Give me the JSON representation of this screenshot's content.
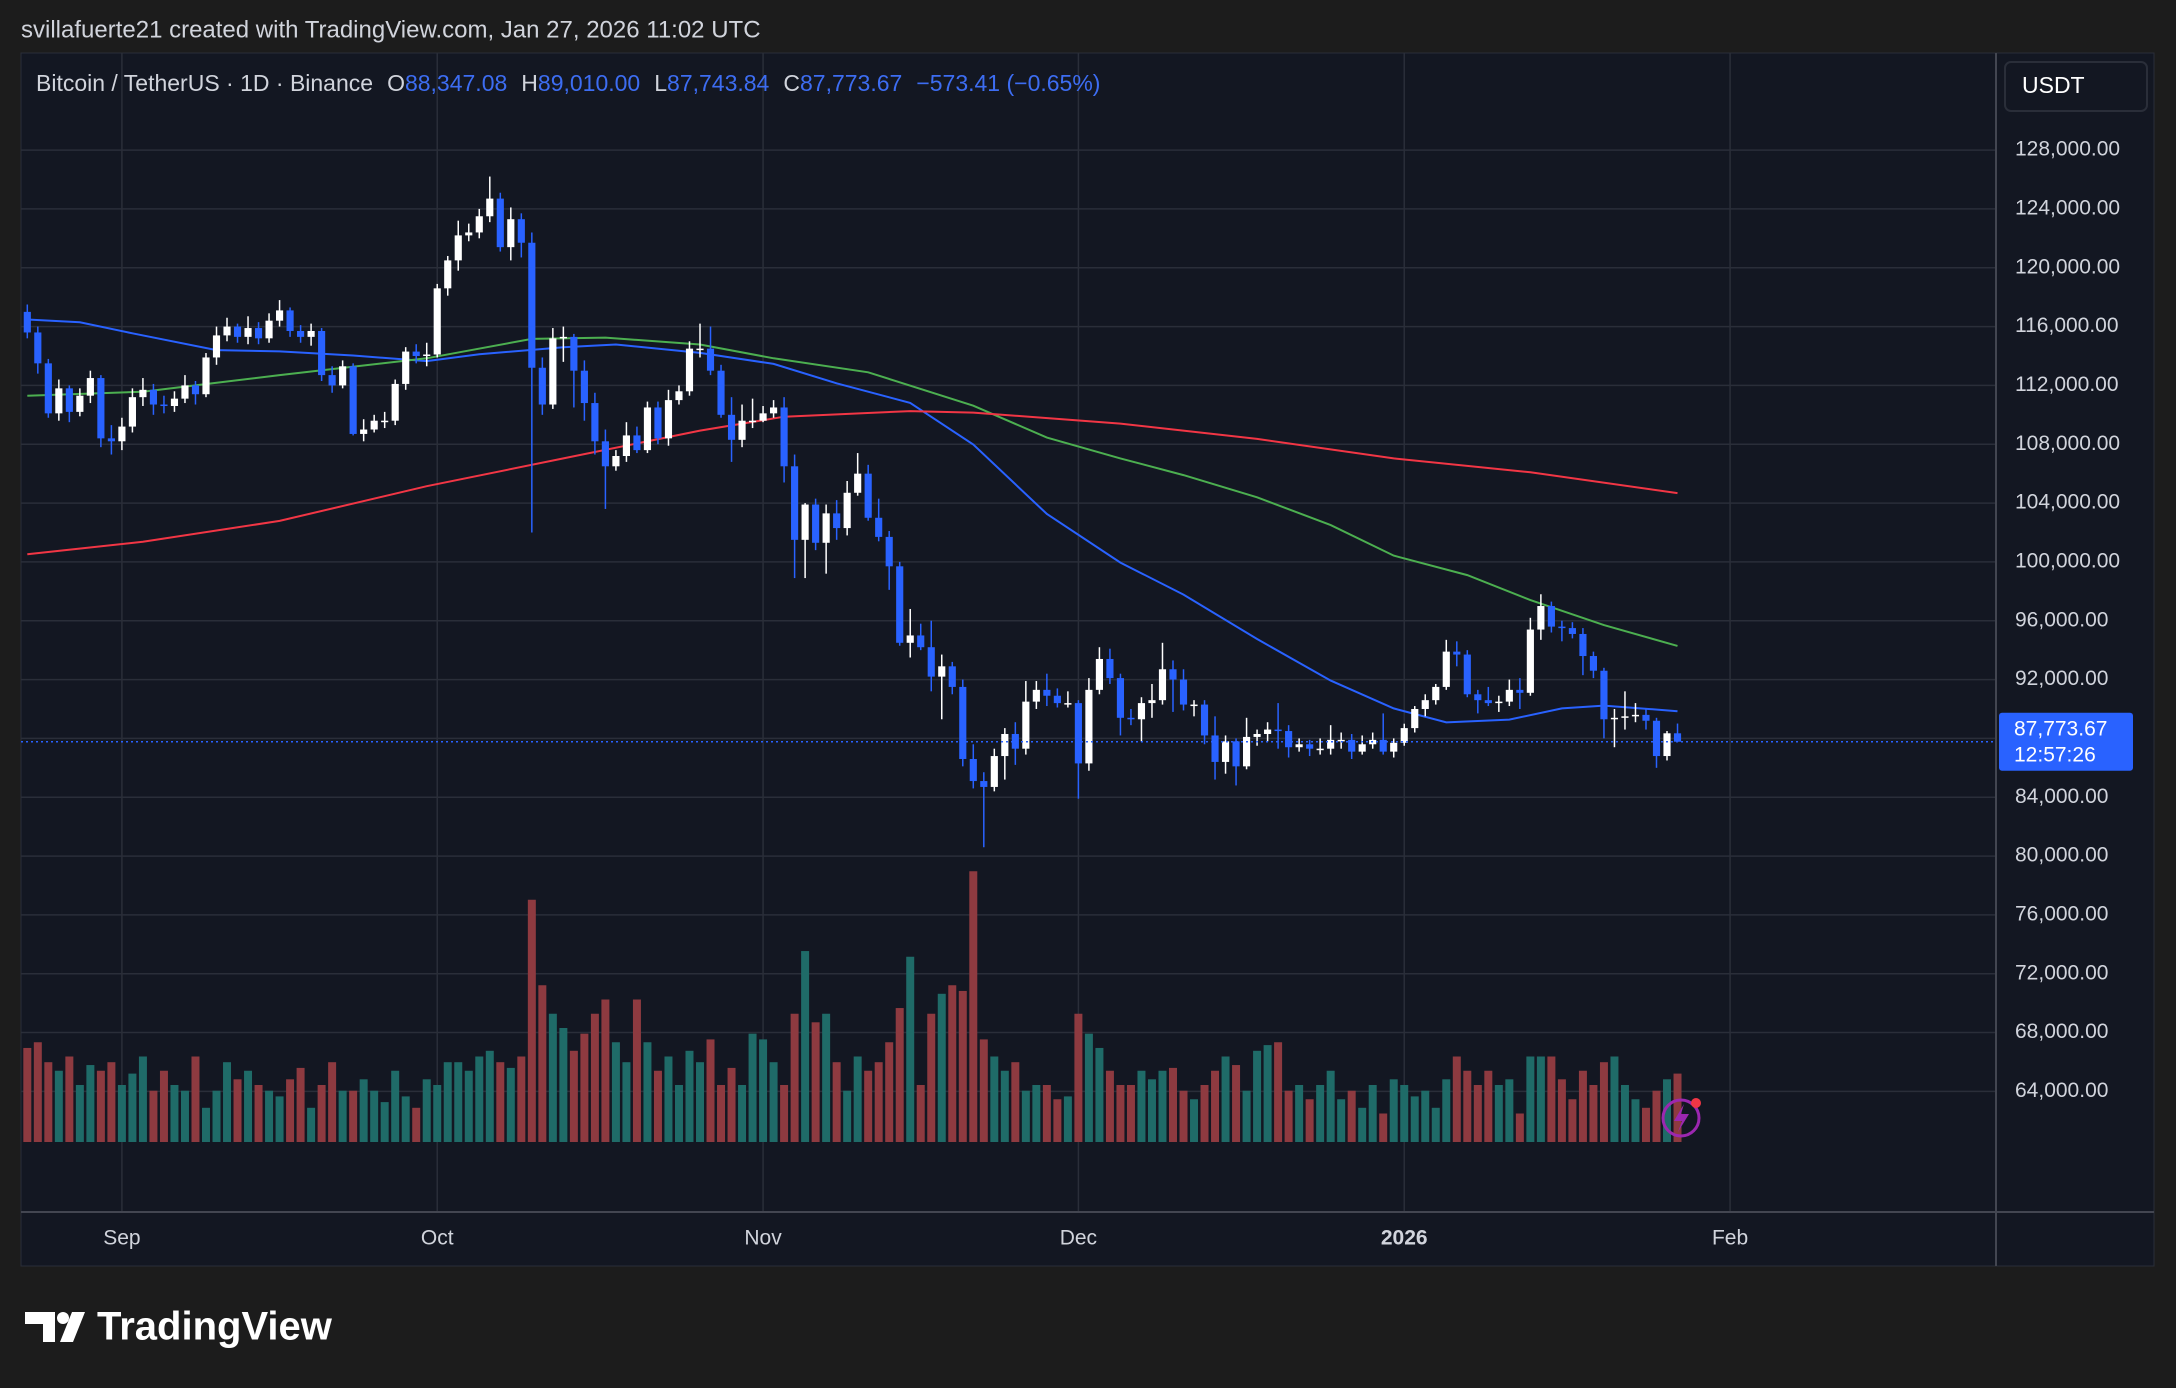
{
  "attribution": "svillafuerte21 created with TradingView.com, Jan 27, 2026 11:02 UTC",
  "brand": "TradingView",
  "chart_data": {
    "type": "candlestick",
    "header": {
      "symbol": "Bitcoin / TetherUS · 1D · Binance",
      "o_key": "O",
      "o": "88,347.08",
      "h_key": "H",
      "h": "89,010.00",
      "l_key": "L",
      "l": "87,743.84",
      "c_key": "C",
      "c": "87,773.67",
      "change": "−573.41 (−0.65%)"
    },
    "currency": "USDT",
    "last_price_label": "87,773.67",
    "countdown": "12:57:26",
    "up_color": "#ffffff",
    "down_color": "#2962ff",
    "volume_up_color": "#1f6b68",
    "volume_down_color": "#8e3a40",
    "grid": true,
    "xlim": [
      -0.6,
      187.3
    ],
    "xticks": [
      {
        "value": 9,
        "label": "Sep"
      },
      {
        "value": 39,
        "label": "Oct"
      },
      {
        "value": 70,
        "label": "Nov"
      },
      {
        "value": 100,
        "label": "Dec"
      },
      {
        "value": 131,
        "label": "2026"
      },
      {
        "value": 162,
        "label": "Feb"
      }
    ],
    "ylim": [
      55800,
      134600
    ],
    "yticks": [
      {
        "value": 64000,
        "label": "64,000.00"
      },
      {
        "value": 68000,
        "label": "68,000.00"
      },
      {
        "value": 72000,
        "label": "72,000.00"
      },
      {
        "value": 76000,
        "label": "76,000.00"
      },
      {
        "value": 80000,
        "label": "80,000.00"
      },
      {
        "value": 84000,
        "label": "84,000.00"
      },
      {
        "value": 88000,
        "label": "88,000.00"
      },
      {
        "value": 92000,
        "label": "92,000.00"
      },
      {
        "value": 96000,
        "label": "96,000.00"
      },
      {
        "value": 100000,
        "label": "100,000.00"
      },
      {
        "value": 104000,
        "label": "104,000.00"
      },
      {
        "value": 108000,
        "label": "108,000.00"
      },
      {
        "value": 112000,
        "label": "112,000.00"
      },
      {
        "value": 116000,
        "label": "116,000.00"
      },
      {
        "value": 120000,
        "label": "120,000.00"
      },
      {
        "value": 124000,
        "label": "124,000.00"
      },
      {
        "value": 128000,
        "label": "128,000.00"
      }
    ],
    "vlim": [
      0,
      100
    ],
    "candles": [
      [
        117000,
        117500,
        115200,
        115600
      ],
      [
        115600,
        116000,
        112800,
        113500
      ],
      [
        113500,
        113800,
        109800,
        110100
      ],
      [
        110100,
        112400,
        109600,
        111800
      ],
      [
        111800,
        112000,
        109500,
        110200
      ],
      [
        110200,
        111800,
        109900,
        111300
      ],
      [
        111300,
        113000,
        110800,
        112500
      ],
      [
        112500,
        112700,
        107800,
        108400
      ],
      [
        108400,
        109300,
        107300,
        108200
      ],
      [
        108200,
        109800,
        107600,
        109200
      ],
      [
        109200,
        111800,
        108800,
        111200
      ],
      [
        111200,
        112500,
        110600,
        111700
      ],
      [
        111700,
        112100,
        110000,
        110700
      ],
      [
        110700,
        111300,
        110100,
        110600
      ],
      [
        110600,
        111600,
        110200,
        111100
      ],
      [
        111100,
        112700,
        110800,
        112000
      ],
      [
        112000,
        112300,
        110700,
        111400
      ],
      [
        111400,
        114200,
        111200,
        113900
      ],
      [
        113900,
        116000,
        113400,
        115400
      ],
      [
        115400,
        116600,
        115000,
        116000
      ],
      [
        116000,
        116200,
        114900,
        115300
      ],
      [
        115300,
        116700,
        114800,
        115900
      ],
      [
        115900,
        116300,
        114800,
        115200
      ],
      [
        115200,
        116900,
        114900,
        116400
      ],
      [
        116400,
        117800,
        116000,
        117100
      ],
      [
        117100,
        117300,
        115300,
        115700
      ],
      [
        115700,
        116100,
        114900,
        115300
      ],
      [
        115300,
        116200,
        114700,
        115700
      ],
      [
        115700,
        115900,
        112300,
        112700
      ],
      [
        112700,
        113300,
        111500,
        112000
      ],
      [
        112000,
        113700,
        111800,
        113300
      ],
      [
        113300,
        113500,
        108600,
        108700
      ],
      [
        108700,
        109700,
        108200,
        109000
      ],
      [
        109000,
        110000,
        108800,
        109600
      ],
      [
        109600,
        110200,
        109100,
        109600
      ],
      [
        109600,
        112400,
        109300,
        112100
      ],
      [
        112100,
        114600,
        111700,
        114300
      ],
      [
        114300,
        114800,
        113500,
        114000
      ],
      [
        114000,
        114900,
        113300,
        114100
      ],
      [
        114100,
        118900,
        113900,
        118600
      ],
      [
        118600,
        120800,
        118100,
        120500
      ],
      [
        120500,
        123200,
        119800,
        122200
      ],
      [
        122200,
        123000,
        121800,
        122400
      ],
      [
        122400,
        124000,
        122000,
        123500
      ],
      [
        123500,
        126200,
        123100,
        124700
      ],
      [
        124700,
        125100,
        121100,
        121400
      ],
      [
        121400,
        124100,
        120500,
        123300
      ],
      [
        123300,
        123700,
        120700,
        121700
      ],
      [
        121700,
        122400,
        102000,
        113200
      ],
      [
        113200,
        113900,
        110000,
        110700
      ],
      [
        110700,
        115900,
        110400,
        115200
      ],
      [
        115200,
        116000,
        113600,
        115300
      ],
      [
        115300,
        115500,
        110500,
        113000
      ],
      [
        113000,
        113700,
        109600,
        110800
      ],
      [
        110800,
        111500,
        107300,
        108200
      ],
      [
        108200,
        109000,
        103600,
        106500
      ],
      [
        106500,
        107600,
        106200,
        107200
      ],
      [
        107200,
        109500,
        106800,
        108600
      ],
      [
        108600,
        109200,
        107400,
        107600
      ],
      [
        107600,
        110900,
        107400,
        110500
      ],
      [
        110500,
        110900,
        108000,
        108400
      ],
      [
        108400,
        111700,
        107900,
        111000
      ],
      [
        111000,
        112000,
        110700,
        111600
      ],
      [
        111600,
        115000,
        111300,
        114500
      ],
      [
        114500,
        116200,
        113900,
        114500
      ],
      [
        114500,
        116000,
        112700,
        113000
      ],
      [
        113000,
        113400,
        109800,
        110000
      ],
      [
        110000,
        111200,
        106800,
        108300
      ],
      [
        108300,
        110700,
        107800,
        109600
      ],
      [
        109600,
        111100,
        109100,
        109600
      ],
      [
        109600,
        110600,
        109500,
        110100
      ],
      [
        110100,
        111000,
        109800,
        110500
      ],
      [
        110500,
        111200,
        105400,
        106500
      ],
      [
        106500,
        107300,
        98900,
        101500
      ],
      [
        101500,
        104000,
        98900,
        103900
      ],
      [
        103900,
        104300,
        100800,
        101300
      ],
      [
        101300,
        103900,
        99200,
        103300
      ],
      [
        103300,
        104200,
        101500,
        102300
      ],
      [
        102300,
        105500,
        101800,
        104700
      ],
      [
        104700,
        107400,
        104500,
        106000
      ],
      [
        106000,
        106600,
        102800,
        103000
      ],
      [
        103000,
        104300,
        101400,
        101700
      ],
      [
        101700,
        102100,
        98100,
        99700
      ],
      [
        99700,
        100000,
        94300,
        94500
      ],
      [
        94500,
        96800,
        93500,
        95000
      ],
      [
        95000,
        95800,
        94000,
        94200
      ],
      [
        94200,
        96000,
        91200,
        92200
      ],
      [
        92200,
        93700,
        89300,
        92900
      ],
      [
        92900,
        93200,
        91000,
        91500
      ],
      [
        91500,
        92000,
        86100,
        86600
      ],
      [
        86600,
        87600,
        84600,
        85100
      ],
      [
        85100,
        85700,
        80600,
        84700
      ],
      [
        84700,
        87300,
        84400,
        86800
      ],
      [
        86800,
        88700,
        85200,
        88300
      ],
      [
        88300,
        89100,
        86200,
        87300
      ],
      [
        87300,
        91900,
        86900,
        90500
      ],
      [
        90500,
        91900,
        90000,
        91300
      ],
      [
        91300,
        92400,
        90200,
        90900
      ],
      [
        90900,
        91400,
        90100,
        90400
      ],
      [
        90400,
        91200,
        90100,
        90400
      ],
      [
        90400,
        90600,
        83900,
        86300
      ],
      [
        86300,
        92100,
        85800,
        91300
      ],
      [
        91300,
        94200,
        91000,
        93400
      ],
      [
        93400,
        94100,
        91700,
        92100
      ],
      [
        92100,
        92400,
        88200,
        89400
      ],
      [
        89400,
        90000,
        88900,
        89300
      ],
      [
        89300,
        90800,
        87800,
        90400
      ],
      [
        90400,
        91700,
        89400,
        90600
      ],
      [
        90600,
        94500,
        90300,
        92700
      ],
      [
        92700,
        93300,
        89800,
        92000
      ],
      [
        92000,
        92700,
        89900,
        90300
      ],
      [
        90300,
        90600,
        89500,
        90300
      ],
      [
        90300,
        90600,
        87600,
        88200
      ],
      [
        88200,
        89500,
        85200,
        86400
      ],
      [
        86400,
        88200,
        85600,
        87800
      ],
      [
        87800,
        88000,
        84800,
        86100
      ],
      [
        86100,
        89400,
        85900,
        88100
      ],
      [
        88100,
        88600,
        87500,
        88300
      ],
      [
        88300,
        89100,
        87800,
        88600
      ],
      [
        88600,
        90400,
        87300,
        88500
      ],
      [
        88500,
        88900,
        86700,
        87400
      ],
      [
        87400,
        88000,
        87100,
        87600
      ],
      [
        87600,
        87900,
        86800,
        87300
      ],
      [
        87300,
        88000,
        86900,
        87300
      ],
      [
        87300,
        88900,
        86900,
        87900
      ],
      [
        87900,
        88400,
        87300,
        87900
      ],
      [
        87900,
        88300,
        86600,
        87100
      ],
      [
        87100,
        88200,
        86900,
        87600
      ],
      [
        87600,
        88400,
        87300,
        87900
      ],
      [
        87900,
        89700,
        86900,
        87100
      ],
      [
        87100,
        88000,
        86700,
        87700
      ],
      [
        87700,
        89000,
        87500,
        88700
      ],
      [
        88700,
        90200,
        88400,
        90000
      ],
      [
        90000,
        91000,
        89500,
        90600
      ],
      [
        90600,
        91700,
        90300,
        91500
      ],
      [
        91500,
        94700,
        91300,
        93900
      ],
      [
        93900,
        94600,
        92900,
        93700
      ],
      [
        93700,
        94000,
        90800,
        91000
      ],
      [
        91000,
        91300,
        89700,
        90600
      ],
      [
        90600,
        91500,
        90200,
        90400
      ],
      [
        90400,
        90900,
        89800,
        90500
      ],
      [
        90500,
        92000,
        90200,
        91300
      ],
      [
        91300,
        92100,
        90000,
        91100
      ],
      [
        91100,
        96200,
        90900,
        95400
      ],
      [
        95400,
        97800,
        94700,
        97000
      ],
      [
        97000,
        97300,
        95200,
        95600
      ],
      [
        95600,
        96000,
        94600,
        95500
      ],
      [
        95500,
        95900,
        94800,
        95100
      ],
      [
        95100,
        95500,
        92300,
        93600
      ],
      [
        93600,
        93900,
        92100,
        92600
      ],
      [
        92600,
        92800,
        88000,
        89300
      ],
      [
        89300,
        90000,
        87400,
        89400
      ],
      [
        89400,
        91200,
        88600,
        89500
      ],
      [
        89500,
        90400,
        89100,
        89600
      ],
      [
        89600,
        90000,
        88600,
        89200
      ],
      [
        89200,
        89400,
        86000,
        86800
      ],
      [
        86800,
        88500,
        86500,
        88347.08
      ],
      [
        88347.08,
        89010,
        87743.84,
        87773.67
      ]
    ],
    "volume": [
      33,
      35,
      28,
      25,
      30,
      20,
      27,
      25,
      28,
      20,
      24,
      30,
      18,
      25,
      20,
      18,
      30,
      12,
      18,
      28,
      22,
      25,
      20,
      18,
      16,
      22,
      26,
      12,
      20,
      28,
      18,
      18,
      22,
      18,
      14,
      25,
      16,
      12,
      22,
      20,
      28,
      28,
      25,
      30,
      32,
      28,
      26,
      30,
      85,
      55,
      45,
      40,
      32,
      38,
      45,
      50,
      35,
      28,
      50,
      35,
      25,
      30,
      20,
      32,
      28,
      36,
      20,
      26,
      20,
      38,
      36,
      28,
      20,
      45,
      67,
      42,
      45,
      28,
      18,
      30,
      25,
      28,
      35,
      47,
      65,
      20,
      45,
      52,
      55,
      53,
      95,
      36,
      30,
      25,
      28,
      18,
      20,
      20,
      15,
      16,
      45,
      38,
      33,
      25,
      20,
      20,
      25,
      22,
      25,
      26,
      18,
      15,
      20,
      25,
      30,
      27,
      18,
      32,
      34,
      35,
      18,
      20,
      15,
      20,
      25,
      15,
      18,
      12,
      20,
      10,
      22,
      20,
      16,
      18,
      12,
      22,
      30,
      25,
      20,
      25,
      20,
      22,
      10,
      30,
      30,
      30,
      22,
      15,
      25,
      20,
      28,
      30,
      20,
      15,
      12,
      18,
      22,
      24
    ],
    "moving_averages": [
      {
        "color": "#2962ff",
        "x": [
          0,
          5,
          10,
          18,
          24,
          31,
          38,
          43,
          51,
          56,
          64,
          71,
          77,
          84,
          90,
          97,
          104,
          110,
          117,
          124,
          130,
          135,
          141,
          146,
          150,
          157
        ],
        "values": [
          116480,
          116290,
          115540,
          114400,
          114310,
          114030,
          113650,
          114120,
          114590,
          114780,
          114210,
          113460,
          112140,
          110810,
          107980,
          103260,
          99950,
          97780,
          94760,
          91930,
          90040,
          89090,
          89280,
          90040,
          90230,
          89850
        ]
      },
      {
        "color": "#4caf50",
        "x": [
          0,
          11,
          24,
          38,
          48,
          55,
          64,
          71,
          80,
          90,
          97,
          104,
          110,
          117,
          124,
          130,
          137,
          143,
          150,
          157
        ],
        "values": [
          111290,
          111570,
          112700,
          113840,
          115160,
          115250,
          114780,
          113840,
          112890,
          110620,
          108450,
          107040,
          105900,
          104390,
          102500,
          100430,
          99100,
          97400,
          95700,
          94290
        ]
      },
      {
        "color": "#f23645",
        "x": [
          0,
          11,
          24,
          38,
          51,
          64,
          72,
          84,
          90,
          104,
          117,
          130,
          143,
          157
        ],
        "values": [
          100520,
          101370,
          102790,
          105150,
          107040,
          108930,
          109870,
          110250,
          110150,
          109400,
          108360,
          107040,
          106090,
          104680
        ]
      }
    ]
  }
}
